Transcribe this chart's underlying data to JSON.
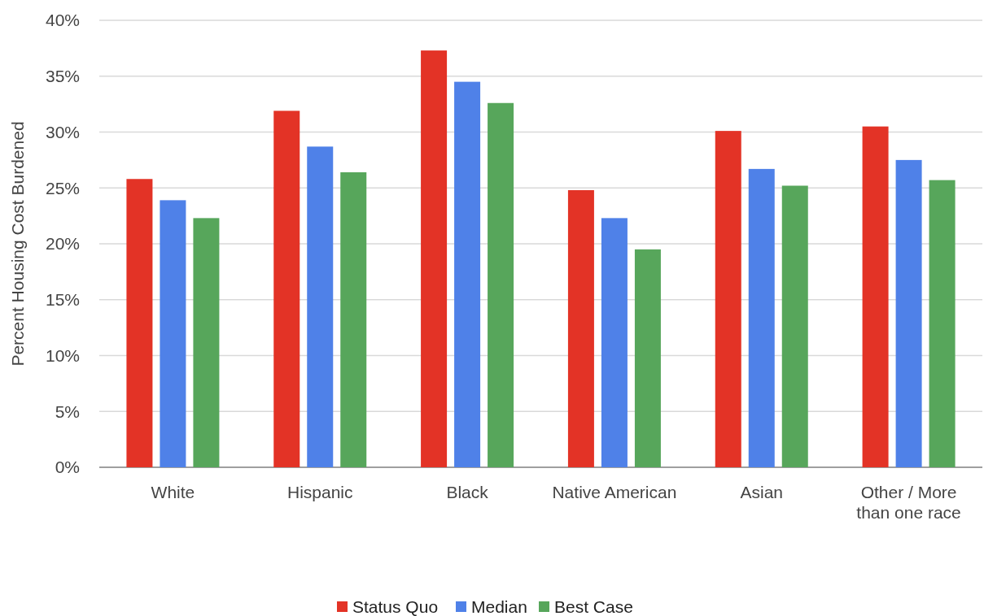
{
  "chart_data": {
    "type": "bar",
    "ylabel": "Percent Housing Cost Burdened",
    "categories": [
      "White",
      "Hispanic",
      "Black",
      "Native American",
      "Asian",
      "Other / More than one race"
    ],
    "series": [
      {
        "name": "Status Quo",
        "color": "#e33326",
        "values": [
          25.8,
          31.9,
          37.3,
          24.8,
          30.1,
          30.5
        ]
      },
      {
        "name": "Median",
        "color": "#4f81e8",
        "values": [
          23.9,
          28.7,
          34.5,
          22.3,
          26.7,
          27.5
        ]
      },
      {
        "name": "Best Case",
        "color": "#57a65b",
        "values": [
          22.3,
          26.4,
          32.6,
          19.5,
          25.2,
          25.7
        ]
      }
    ],
    "ylim": [
      0,
      40
    ],
    "yticks": [
      {
        "value": 0,
        "label": "0%"
      },
      {
        "value": 5,
        "label": "5%"
      },
      {
        "value": 10,
        "label": "10%"
      },
      {
        "value": 15,
        "label": "15%"
      },
      {
        "value": 20,
        "label": "20%"
      },
      {
        "value": 25,
        "label": "25%"
      },
      {
        "value": 30,
        "label": "30%"
      },
      {
        "value": 35,
        "label": "35%"
      },
      {
        "value": 40,
        "label": "40%"
      }
    ],
    "grid": "y",
    "legend": "bottom"
  }
}
